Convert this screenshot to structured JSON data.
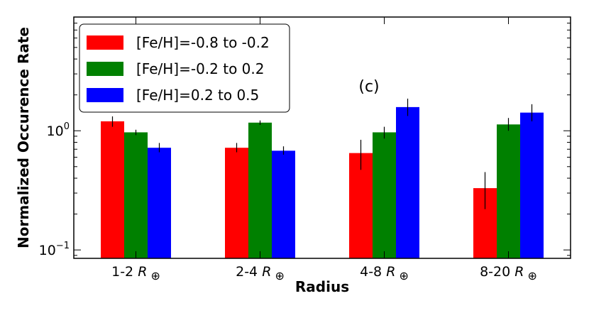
{
  "chart_data": {
    "type": "bar",
    "annotation": "(c)",
    "ylabel": "Normalized Occurence Rate",
    "xlabel": "Radius",
    "yscale": "log",
    "ylim": [
      0.085,
      9.0
    ],
    "yticks": [
      {
        "value": 0.1,
        "base": "10",
        "exp": "−1"
      },
      {
        "value": 1.0,
        "base": "10",
        "exp": "0"
      }
    ],
    "categories": [
      {
        "prefix": "1-2 ",
        "symbol": "R",
        "sub": "⊕"
      },
      {
        "prefix": "2-4 ",
        "symbol": "R",
        "sub": "⊕"
      },
      {
        "prefix": "4-8 ",
        "symbol": "R",
        "sub": "⊕"
      },
      {
        "prefix": "8-20 ",
        "symbol": "R",
        "sub": "⊕"
      }
    ],
    "legend_position": "top-left",
    "series": [
      {
        "name": "[Fe/H]=-0.8 to -0.2",
        "color": "#ff0000",
        "values": [
          1.2,
          0.72,
          0.65,
          0.33
        ],
        "err_low": [
          1.08,
          0.66,
          0.47,
          0.22
        ],
        "err_high": [
          1.32,
          0.79,
          0.84,
          0.45
        ]
      },
      {
        "name": "[Fe/H]=-0.2 to 0.2",
        "color": "#008000",
        "values": [
          0.97,
          1.17,
          0.97,
          1.13
        ],
        "err_low": [
          0.92,
          1.12,
          0.86,
          1.0
        ],
        "err_high": [
          1.02,
          1.22,
          1.08,
          1.28
        ]
      },
      {
        "name": "[Fe/H]=0.2 to 0.5",
        "color": "#0000ff",
        "values": [
          0.72,
          0.68,
          1.58,
          1.42
        ],
        "err_low": [
          0.66,
          0.63,
          1.33,
          1.2
        ],
        "err_high": [
          0.79,
          0.74,
          1.86,
          1.67
        ]
      }
    ]
  }
}
